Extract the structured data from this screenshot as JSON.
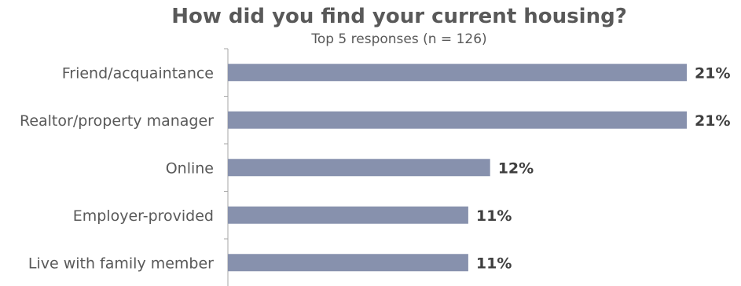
{
  "chart_data": {
    "type": "bar",
    "orientation": "horizontal",
    "title": "How did you find your current housing?",
    "subtitle": "Top 5 responses (n = 126)",
    "categories": [
      "Friend/acquaintance",
      "Realtor/property manager",
      "Online",
      "Employer-provided",
      "Live with family member"
    ],
    "values": [
      21,
      21,
      12,
      11,
      11
    ],
    "value_labels": [
      "21%",
      "21%",
      "12%",
      "11%",
      "11%"
    ],
    "xlim": [
      0,
      21
    ],
    "bar_color": "#8791ad",
    "grid": false,
    "legend": "none"
  }
}
